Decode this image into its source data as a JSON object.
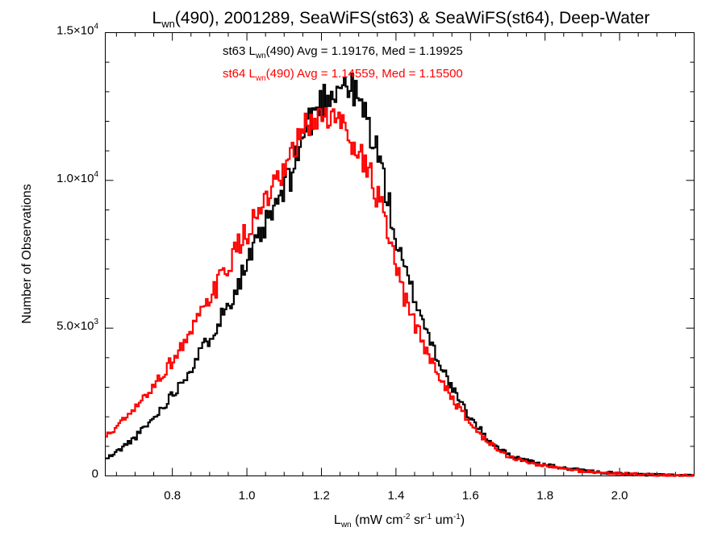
{
  "chart_data": {
    "type": "histogram-step",
    "title": {
      "symbol": "L",
      "symbol_sub": "wn",
      "rest": "(490), 2001289, SeaWiFS(st63) & SeaWiFS(st64), Deep-Water"
    },
    "xlabel": {
      "symbol": "L",
      "symbol_sub": "wn",
      "units_open": " (mW cm",
      "exp1": "-2",
      "sr": " sr",
      "exp2": "-1",
      "um": " um",
      "exp3": "-1",
      "close": ")"
    },
    "ylabel": "Number of Observations",
    "xlim": [
      0.62,
      2.2
    ],
    "ylim": [
      0,
      15000
    ],
    "xticks": [
      {
        "value": 0.8,
        "label": "0.8"
      },
      {
        "value": 1.0,
        "label": "1.0"
      },
      {
        "value": 1.2,
        "label": "1.2"
      },
      {
        "value": 1.4,
        "label": "1.4"
      },
      {
        "value": 1.6,
        "label": "1.6"
      },
      {
        "value": 1.8,
        "label": "1.8"
      },
      {
        "value": 2.0,
        "label": "2.0"
      }
    ],
    "yticks": [
      {
        "value": 0,
        "mantissa": "0",
        "exp": ""
      },
      {
        "value": 5000,
        "mantissa": "5.0×10",
        "exp": "3"
      },
      {
        "value": 10000,
        "mantissa": "1.0×10",
        "exp": "4"
      },
      {
        "value": 15000,
        "mantissa": "1.5×10",
        "exp": "4"
      }
    ],
    "bin_width": 0.005,
    "series": [
      {
        "color": "#000000",
        "label": {
          "pre": "st63 L",
          "sub": "wn",
          "post": "(490) Avg = 1.19176, Med = 1.19925"
        },
        "x": [
          0.62,
          0.65,
          0.7,
          0.75,
          0.8,
          0.85,
          0.9,
          0.95,
          1.0,
          1.05,
          1.1,
          1.12,
          1.14,
          1.16,
          1.18,
          1.2,
          1.22,
          1.24,
          1.26,
          1.28,
          1.3,
          1.32,
          1.34,
          1.36,
          1.38,
          1.4,
          1.42,
          1.45,
          1.5,
          1.55,
          1.6,
          1.65,
          1.7,
          1.75,
          1.8,
          1.85,
          1.9,
          1.95,
          2.0,
          2.05,
          2.1,
          2.15,
          2.2
        ],
        "y": [
          550,
          800,
          1300,
          1950,
          2750,
          3650,
          4700,
          5800,
          7150,
          8450,
          9650,
          10250,
          11050,
          11800,
          12250,
          12650,
          12950,
          13150,
          13300,
          13100,
          12700,
          12150,
          11350,
          10550,
          9250,
          7950,
          7050,
          6050,
          4350,
          2950,
          1950,
          1200,
          720,
          520,
          370,
          260,
          180,
          120,
          80,
          55,
          35,
          20,
          10
        ]
      },
      {
        "color": "#ff0000",
        "label": {
          "pre": "st64 L",
          "sub": "wn",
          "post": "(490) Avg = 1.14559, Med = 1.15500"
        },
        "x": [
          0.62,
          0.65,
          0.7,
          0.75,
          0.8,
          0.85,
          0.9,
          0.95,
          1.0,
          1.05,
          1.1,
          1.12,
          1.14,
          1.16,
          1.18,
          1.2,
          1.22,
          1.24,
          1.26,
          1.28,
          1.3,
          1.32,
          1.34,
          1.36,
          1.38,
          1.4,
          1.42,
          1.45,
          1.5,
          1.55,
          1.6,
          1.65,
          1.7,
          1.75,
          1.8,
          1.85,
          1.9,
          1.95,
          2.0,
          2.05,
          2.1,
          2.15,
          2.2
        ],
        "y": [
          1300,
          1650,
          2250,
          3050,
          3900,
          4850,
          5950,
          7150,
          8250,
          9250,
          10150,
          10750,
          11350,
          11800,
          12050,
          12200,
          12150,
          12000,
          11850,
          11500,
          11050,
          10500,
          9850,
          9100,
          8050,
          7050,
          6100,
          5150,
          3750,
          2650,
          1750,
          1100,
          670,
          470,
          340,
          240,
          160,
          110,
          75,
          50,
          30,
          20,
          10
        ]
      }
    ]
  }
}
